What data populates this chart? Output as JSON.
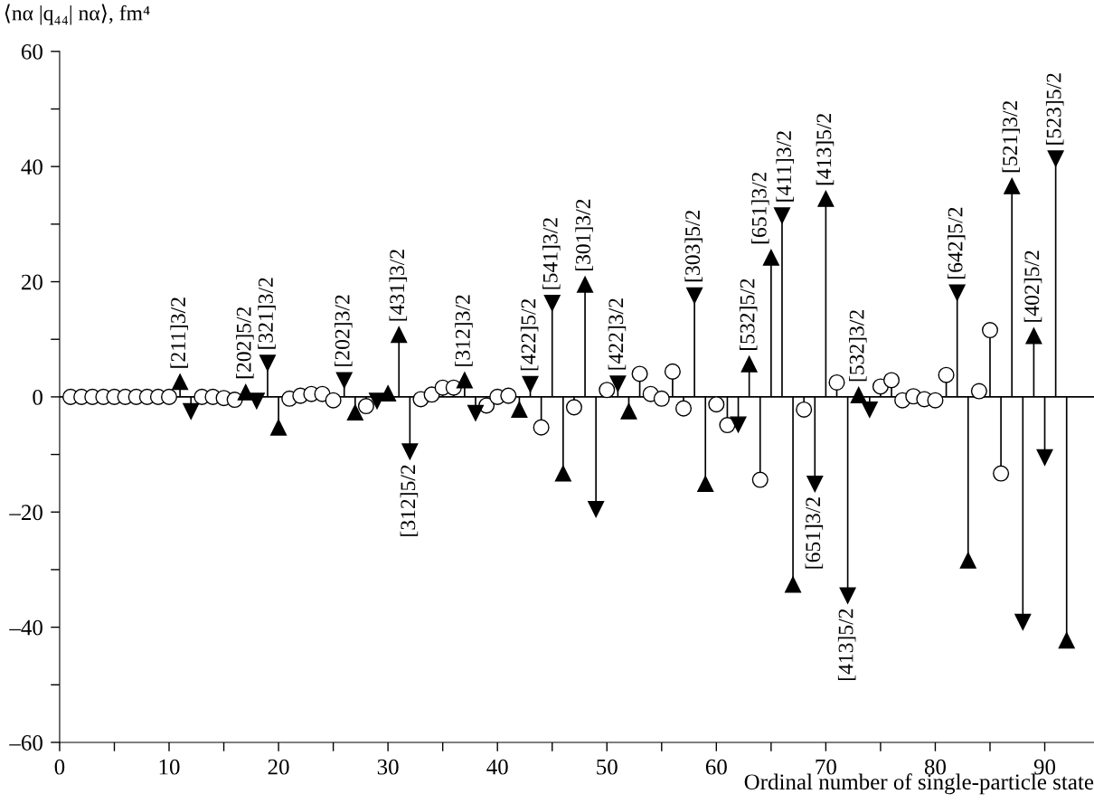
{
  "chart_data": {
    "type": "lollipop",
    "ylabel": "⟨nα |q₄₄| nα⟩, fm⁴",
    "xlabel": "Ordinal number of single-particle state",
    "x": [
      1,
      2,
      3,
      4,
      5,
      6,
      7,
      8,
      9,
      10,
      11,
      12,
      13,
      14,
      15,
      16,
      17,
      18,
      19,
      20,
      21,
      22,
      23,
      24,
      25,
      26,
      27,
      28,
      29,
      30,
      31,
      32,
      33,
      34,
      35,
      36,
      37,
      38,
      39,
      40,
      41,
      42,
      43,
      44,
      45,
      46,
      47,
      48,
      49,
      50,
      51,
      52,
      53,
      54,
      55,
      56,
      57,
      58,
      59,
      60,
      61,
      62,
      63,
      64,
      65,
      66,
      67,
      68,
      69,
      70,
      71,
      72,
      73,
      74,
      75,
      76,
      77,
      78,
      79,
      80,
      81,
      82,
      83,
      84,
      85,
      86,
      87,
      88,
      89,
      90,
      91,
      92
    ],
    "series": [
      {
        "color": "#000000",
        "marker": "circle",
        "values": [
          0,
          0,
          0,
          0,
          0,
          0,
          0,
          0,
          0,
          0,
          null,
          null,
          0,
          0,
          -0.2,
          -0.5,
          null,
          null,
          null,
          null,
          -0.3,
          0.2,
          0.5,
          0.5,
          -0.6,
          null,
          null,
          -1.6,
          null,
          null,
          null,
          null,
          -0.4,
          0.4,
          1.6,
          1.6,
          null,
          null,
          -1.5,
          0,
          0.2,
          null,
          null,
          -5.3,
          null,
          null,
          -1.8,
          null,
          null,
          1.2,
          null,
          null,
          4.0,
          0.5,
          -0.3,
          4.4,
          -2.0,
          null,
          null,
          -1.3,
          -4.9,
          null,
          null,
          -14.4,
          null,
          null,
          null,
          -2.2,
          null,
          null,
          2.5,
          null,
          null,
          null,
          1.8,
          2.9,
          -0.6,
          0.1,
          -0.4,
          -0.6,
          3.8,
          null,
          null,
          1.0,
          11.6,
          -13.3,
          null,
          null,
          null,
          null,
          null,
          null
        ]
      },
      {
        "color": "#000000",
        "marker": "triangle",
        "values": [
          null,
          null,
          null,
          null,
          null,
          null,
          null,
          null,
          null,
          null,
          2.6,
          null,
          null,
          null,
          null,
          null,
          0.8,
          null,
          null,
          -5.3,
          null,
          null,
          null,
          null,
          null,
          null,
          -2.7,
          null,
          null,
          0.6,
          10.8,
          null,
          null,
          null,
          null,
          null,
          2.9,
          null,
          null,
          null,
          null,
          -2.2,
          null,
          null,
          null,
          -13.3,
          null,
          19.5,
          null,
          null,
          null,
          -2.5,
          null,
          null,
          null,
          null,
          null,
          null,
          -15.1,
          null,
          null,
          null,
          5.7,
          null,
          24.2,
          null,
          -32.6,
          null,
          null,
          34.4,
          null,
          null,
          0.3,
          null,
          null,
          null,
          null,
          null,
          null,
          null,
          null,
          null,
          -28.4,
          null,
          null,
          null,
          36.6,
          null,
          10.6,
          null,
          null,
          -42.3
        ]
      },
      {
        "color": "#000000",
        "marker": "triangle-down",
        "values": [
          null,
          null,
          null,
          null,
          null,
          null,
          null,
          null,
          null,
          null,
          null,
          -2.5,
          null,
          null,
          null,
          null,
          null,
          -0.7,
          5.9,
          null,
          null,
          null,
          null,
          null,
          null,
          2.9,
          null,
          null,
          -0.7,
          null,
          null,
          -9.5,
          null,
          null,
          null,
          null,
          null,
          -2.8,
          null,
          null,
          null,
          null,
          2.2,
          null,
          16.3,
          null,
          null,
          null,
          -19.5,
          null,
          2.3,
          null,
          null,
          null,
          null,
          null,
          null,
          17.6,
          null,
          null,
          null,
          -4.8,
          null,
          null,
          null,
          31.5,
          null,
          null,
          -15.1,
          null,
          null,
          -34.5,
          null,
          -2.2,
          null,
          null,
          null,
          null,
          null,
          null,
          null,
          18.1,
          null,
          null,
          null,
          null,
          null,
          -39.1,
          null,
          -10.5,
          41.4,
          null
        ]
      }
    ],
    "annotations": [
      {
        "text": "[211]3/2",
        "x": 11,
        "y": 2.6
      },
      {
        "text": "[202]5/2",
        "x": 17,
        "y": 0.8
      },
      {
        "text": "[321]3/2",
        "x": 19,
        "y": 5.9
      },
      {
        "text": "[202]3/2",
        "x": 26,
        "y": 2.9
      },
      {
        "text": "[431]3/2",
        "x": 31,
        "y": 10.8
      },
      {
        "text": "[312]5/2",
        "x": 32,
        "y": -9.5
      },
      {
        "text": "[312]3/2",
        "x": 37,
        "y": 2.9
      },
      {
        "text": "[422]5/2",
        "x": 43,
        "y": 2.2
      },
      {
        "text": "[541]3/2",
        "x": 45,
        "y": 16.3
      },
      {
        "text": "[301]3/2",
        "x": 48,
        "y": 19.5
      },
      {
        "text": "[422]3/2",
        "x": 51,
        "y": 2.3
      },
      {
        "text": "[303]5/2",
        "x": 58,
        "y": 17.6
      },
      {
        "text": "[532]5/2",
        "x": 63,
        "y": 5.7
      },
      {
        "text": "[651]3/2",
        "x": 65,
        "y": 24.2
      },
      {
        "text": "[411]3/2",
        "x": 66,
        "y": 31.5
      },
      {
        "text": "[651]3/2",
        "x": 69,
        "y": -15.1
      },
      {
        "text": "[413]5/2",
        "x": 70,
        "y": 34.4
      },
      {
        "text": "[413]5/2",
        "x": 72,
        "y": -34.5
      },
      {
        "text": "[532]3/2",
        "x": 73,
        "y": 0.3
      },
      {
        "text": "[642]5/2",
        "x": 82,
        "y": 18.1
      },
      {
        "text": "[521]3/2",
        "x": 87,
        "y": 36.6
      },
      {
        "text": "[402]5/2",
        "x": 89,
        "y": 10.6
      },
      {
        "text": "[523]5/2",
        "x": 91,
        "y": 41.4
      }
    ],
    "ref_lines": [
      {
        "axis": "y",
        "value": 0,
        "color": "#000000"
      }
    ],
    "xlim": [
      0,
      94.5
    ],
    "xticks": [
      0,
      {
        "value": 5,
        "label": null
      },
      10,
      {
        "value": 15,
        "label": null
      },
      20,
      {
        "value": 25,
        "label": null
      },
      30,
      {
        "value": 35,
        "label": null
      },
      40,
      {
        "value": 45,
        "label": null
      },
      50,
      {
        "value": 55,
        "label": null
      },
      60,
      {
        "value": 65,
        "label": null
      },
      70,
      {
        "value": 75,
        "label": null
      },
      80,
      {
        "value": 85,
        "label": null
      },
      90
    ],
    "ylim": [
      -60,
      60
    ],
    "yticks": [
      {
        "value": -60,
        "label": "–60"
      },
      {
        "value": -50,
        "label": null
      },
      {
        "value": -40,
        "label": "–40"
      },
      {
        "value": -30,
        "label": null
      },
      {
        "value": -20,
        "label": "–20"
      },
      {
        "value": -10,
        "label": null
      },
      0,
      {
        "value": 10,
        "label": null
      },
      20,
      {
        "value": 30,
        "label": null
      },
      40,
      {
        "value": 50,
        "label": null
      },
      60
    ],
    "grid": false,
    "legend": false
  }
}
